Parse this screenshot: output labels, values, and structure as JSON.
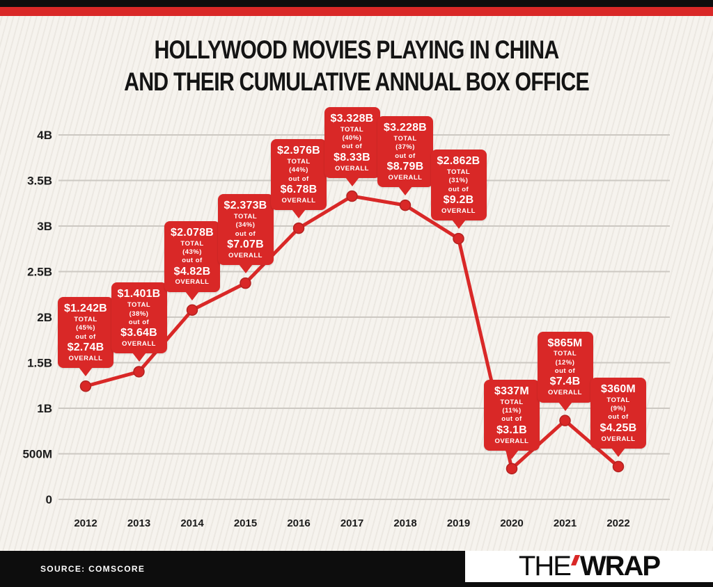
{
  "page": {
    "title_line1": "HOLLYWOOD MOVIES PLAYING IN CHINA",
    "title_line2": "AND THEIR CUMULATIVE ANNUAL BOX OFFICE"
  },
  "footer": {
    "source": "SOURCE: COMSCORE",
    "logo_the": "THE",
    "logo_wrap": "WRAP"
  },
  "chart_data": {
    "type": "line",
    "title": "Hollywood movies playing in China and their cumulative annual box office",
    "units": "USD billions",
    "ylim": [
      0,
      4.3
    ],
    "grid": true,
    "legend": "none",
    "line_color": "#d92827",
    "y_ticks": [
      {
        "label": "4B",
        "value": 4.0
      },
      {
        "label": "3.5B",
        "value": 3.5
      },
      {
        "label": "3B",
        "value": 3.0
      },
      {
        "label": "2.5B",
        "value": 2.5
      },
      {
        "label": "2B",
        "value": 2.0
      },
      {
        "label": "1.5B",
        "value": 1.5
      },
      {
        "label": "1B",
        "value": 1.0
      },
      {
        "label": "500M",
        "value": 0.5
      },
      {
        "label": "0",
        "value": 0.0
      }
    ],
    "callout_words": {
      "total": "TOTAL",
      "out_of": "out of",
      "overall": "OVERALL"
    },
    "points": [
      {
        "year": "2012",
        "value_billions": 1.242,
        "total": "$1.242B",
        "percent": "(45%)",
        "overall": "$2.74B"
      },
      {
        "year": "2013",
        "value_billions": 1.401,
        "total": "$1.401B",
        "percent": "(38%)",
        "overall": "$3.64B"
      },
      {
        "year": "2014",
        "value_billions": 2.078,
        "total": "$2.078B",
        "percent": "(43%)",
        "overall": "$4.82B"
      },
      {
        "year": "2015",
        "value_billions": 2.373,
        "total": "$2.373B",
        "percent": "(34%)",
        "overall": "$7.07B"
      },
      {
        "year": "2016",
        "value_billions": 2.976,
        "total": "$2.976B",
        "percent": "(44%)",
        "overall": "$6.78B"
      },
      {
        "year": "2017",
        "value_billions": 3.328,
        "total": "$3.328B",
        "percent": "(40%)",
        "overall": "$8.33B"
      },
      {
        "year": "2018",
        "value_billions": 3.228,
        "total": "$3.228B",
        "percent": "(37%)",
        "overall": "$8.79B"
      },
      {
        "year": "2019",
        "value_billions": 2.862,
        "total": "$2.862B",
        "percent": "(31%)",
        "overall": "$9.2B"
      },
      {
        "year": "2020",
        "value_billions": 0.337,
        "total": "$337M",
        "percent": "(11%)",
        "overall": "$3.1B"
      },
      {
        "year": "2021",
        "value_billions": 0.865,
        "total": "$865M",
        "percent": "(12%)",
        "overall": "$7.4B"
      },
      {
        "year": "2022",
        "value_billions": 0.36,
        "total": "$360M",
        "percent": "(9%)",
        "overall": "$4.25B"
      }
    ]
  }
}
